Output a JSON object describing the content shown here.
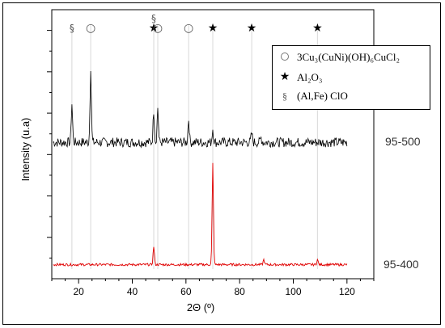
{
  "chart_data": {
    "type": "line",
    "xlabel": "2Θ (º)",
    "ylabel": "Intensity (u.a)",
    "xlim": [
      10,
      130
    ],
    "xticks": [
      20,
      40,
      60,
      80,
      100,
      120
    ],
    "grid": false,
    "legend_position": "top-right",
    "series": [
      {
        "name": "95-500",
        "color": "#000000",
        "peaks": [
          {
            "x": 17.5,
            "height": 0.4
          },
          {
            "x": 24.5,
            "height": 0.78
          },
          {
            "x": 48.0,
            "height": 0.33
          },
          {
            "x": 49.5,
            "height": 0.36
          },
          {
            "x": 61.0,
            "height": 0.24
          },
          {
            "x": 70.0,
            "height": 0.14
          },
          {
            "x": 84.5,
            "height": 0.09
          },
          {
            "x": 88.0,
            "height": 0.05
          }
        ]
      },
      {
        "name": "95-400",
        "color": "#e00000",
        "peaks": [
          {
            "x": 48.0,
            "height": 0.18
          },
          {
            "x": 70.0,
            "height": 1.0
          },
          {
            "x": 89.0,
            "height": 0.05
          },
          {
            "x": 109.0,
            "height": 0.05
          }
        ]
      }
    ],
    "marker_legend": [
      {
        "symbol": "circle",
        "label": "3Cu₃(CuNi)(OH)₆CuCl₂"
      },
      {
        "symbol": "star",
        "label": "Al₂O₃"
      },
      {
        "symbol": "section",
        "label": "(Al,Fe) ClO"
      }
    ],
    "top_markers": [
      {
        "x": 17.5,
        "symbol": "section"
      },
      {
        "x": 24.5,
        "symbol": "circle"
      },
      {
        "x": 48.0,
        "symbol": "star"
      },
      {
        "x": 48.0,
        "symbol": "section"
      },
      {
        "x": 49.5,
        "symbol": "circle"
      },
      {
        "x": 61.0,
        "symbol": "circle"
      },
      {
        "x": 70.0,
        "symbol": "star"
      },
      {
        "x": 84.5,
        "symbol": "star"
      },
      {
        "x": 109.0,
        "symbol": "star"
      }
    ],
    "symbols": {
      "circle": "○",
      "star": "★",
      "section": "§"
    }
  }
}
